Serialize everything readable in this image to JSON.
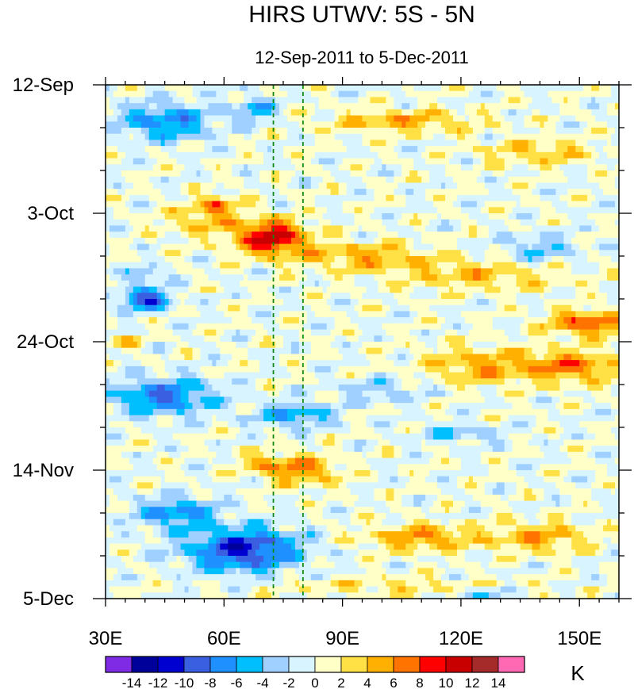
{
  "chart_data": {
    "type": "heatmap",
    "title": "HIRS UTWV: 5S - 5N",
    "subtitle": "12-Sep-2011 to 5-Dec-2011",
    "x_axis": {
      "range": [
        30,
        160
      ],
      "ticks": [
        30,
        60,
        90,
        120,
        150
      ],
      "tick_labels": [
        "30E",
        "60E",
        "90E",
        "120E",
        "150E"
      ]
    },
    "y_axis": {
      "range_days": [
        0,
        84
      ],
      "ticks": [
        0,
        21,
        42,
        63,
        84
      ],
      "tick_labels": [
        "12-Sep",
        "3-Oct",
        "24-Oct",
        "14-Nov",
        "5-Dec"
      ],
      "direction": "time increases downward"
    },
    "reference_lines_lon": [
      72.5,
      80
    ],
    "colorbar": {
      "unit": "K",
      "labels": [
        "-14",
        "-12",
        "-10",
        "-8",
        "-6",
        "-4",
        "-2",
        "0",
        "2",
        "4",
        "6",
        "8",
        "10",
        "12",
        "14"
      ],
      "colors": [
        "#7f2be6",
        "#00009a",
        "#0000d0",
        "#3a5fe0",
        "#1e90ff",
        "#00bfff",
        "#9fd0ff",
        "#d8f4ff",
        "#ffffc8",
        "#ffe045",
        "#ffb000",
        "#ff7300",
        "#ff0000",
        "#c80000",
        "#a52a2a",
        "#ff69b4"
      ]
    },
    "features": [
      {
        "type": "warm",
        "lon": 72,
        "day": 25,
        "value": 11
      },
      {
        "type": "warm",
        "lon": 58,
        "day": 19,
        "value": 9
      },
      {
        "type": "warm",
        "lon": 78,
        "day": 63,
        "value": 7
      },
      {
        "type": "warm",
        "lon": 155,
        "day": 38,
        "value": 9
      },
      {
        "type": "warm",
        "lon": 150,
        "day": 46,
        "value": 8
      },
      {
        "type": "warm",
        "lon": 110,
        "day": 74,
        "value": 7
      },
      {
        "type": "cool",
        "lon": 65,
        "day": 75,
        "value": -11
      },
      {
        "type": "cool",
        "lon": 45,
        "day": 51,
        "value": -8
      },
      {
        "type": "cool",
        "lon": 45,
        "day": 6,
        "value": -7
      },
      {
        "type": "cool",
        "lon": 40,
        "day": 33,
        "value": -10
      }
    ]
  }
}
